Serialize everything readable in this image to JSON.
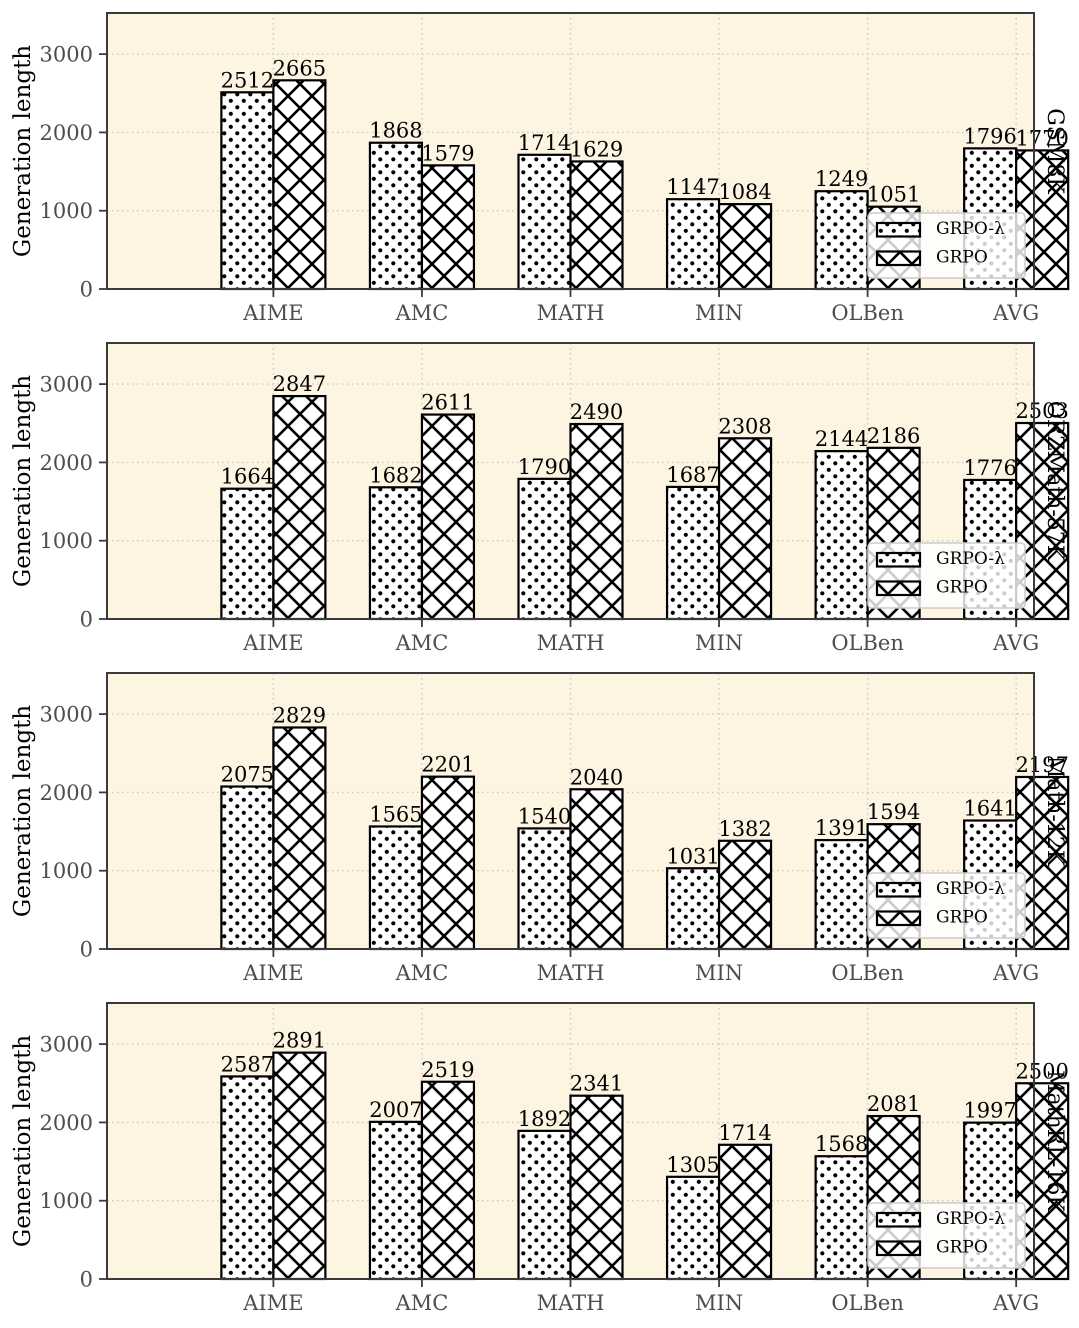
{
  "figure": {
    "ylabel": "Generation length",
    "categories": [
      "AIME",
      "AMC",
      "MATH",
      "MIN",
      "OLBen",
      "AVG"
    ],
    "yticks": [
      "0",
      "1000",
      "2000",
      "3000"
    ],
    "legend": {
      "position": "lower right",
      "items": [
        {
          "label": "GRPO-λ",
          "pattern": "dots"
        },
        {
          "label": "GRPO",
          "pattern": "crosshatch"
        }
      ]
    },
    "colors": {
      "figure_background": "#ffffff",
      "plot_background": "#fdf4e1",
      "grid": "#c9c9c9",
      "spine": "#3a3a3a",
      "bar_fill": "#ffffff",
      "bar_hatch": "#000000",
      "bar_edge": "#000000",
      "tick_label": "#4d4d4d",
      "value_label": "#000000",
      "axis_label": "#000000",
      "legend_border": "#cccccc",
      "legend_background": "rgba(255,255,255,0.8)"
    }
  },
  "chart_data": [
    {
      "type": "bar",
      "panel_label": "GSM8K",
      "title": "",
      "xlabel": "",
      "ylabel": "Generation length",
      "categories": [
        "AIME",
        "AMC",
        "MATH",
        "MIN",
        "OLBen",
        "AVG"
      ],
      "series": [
        {
          "name": "GRPO-λ",
          "pattern": "dots",
          "values": [
            2512,
            1868,
            1714,
            1147,
            1249,
            1796
          ]
        },
        {
          "name": "GRPO",
          "pattern": "crosshatch",
          "values": [
            2665,
            1579,
            1629,
            1084,
            1051,
            1770
          ]
        }
      ],
      "ylim": [
        0,
        3525
      ],
      "yticks": [
        0,
        1000,
        2000,
        3000
      ],
      "grid": true,
      "legend_position": "lower right"
    },
    {
      "type": "bar",
      "panel_label": "ORZMath-57K",
      "title": "",
      "xlabel": "",
      "ylabel": "Generation length",
      "categories": [
        "AIME",
        "AMC",
        "MATH",
        "MIN",
        "OLBen",
        "AVG"
      ],
      "series": [
        {
          "name": "GRPO-λ",
          "pattern": "dots",
          "values": [
            1664,
            1682,
            1790,
            1687,
            2144,
            1776
          ]
        },
        {
          "name": "GRPO",
          "pattern": "crosshatch",
          "values": [
            2847,
            2611,
            2490,
            2308,
            2186,
            2503
          ]
        }
      ],
      "ylim": [
        0,
        3525
      ],
      "yticks": [
        0,
        1000,
        2000,
        3000
      ],
      "grid": true,
      "legend_position": "lower right"
    },
    {
      "type": "bar",
      "panel_label": "Math-12K",
      "title": "",
      "xlabel": "",
      "ylabel": "Generation length",
      "categories": [
        "AIME",
        "AMC",
        "MATH",
        "MIN",
        "OLBen",
        "AVG"
      ],
      "series": [
        {
          "name": "GRPO-λ",
          "pattern": "dots",
          "values": [
            2075,
            1565,
            1540,
            1031,
            1391,
            1641
          ]
        },
        {
          "name": "GRPO",
          "pattern": "crosshatch",
          "values": [
            2829,
            2201,
            2040,
            1382,
            1594,
            2197
          ]
        }
      ],
      "ylim": [
        0,
        3525
      ],
      "yticks": [
        0,
        1000,
        2000,
        3000
      ],
      "grid": true,
      "legend_position": "lower right"
    },
    {
      "type": "bar",
      "panel_label": "MathRL-16K",
      "title": "",
      "xlabel": "",
      "ylabel": "Generation length",
      "categories": [
        "AIME",
        "AMC",
        "MATH",
        "MIN",
        "OLBen",
        "AVG"
      ],
      "series": [
        {
          "name": "GRPO-λ",
          "pattern": "dots",
          "values": [
            2587,
            2007,
            1892,
            1305,
            1568,
            1997
          ]
        },
        {
          "name": "GRPO",
          "pattern": "crosshatch",
          "values": [
            2891,
            2519,
            2341,
            1714,
            2081,
            2500
          ]
        }
      ],
      "ylim": [
        0,
        3525
      ],
      "yticks": [
        0,
        1000,
        2000,
        3000
      ],
      "grid": true,
      "legend_position": "lower right"
    }
  ]
}
